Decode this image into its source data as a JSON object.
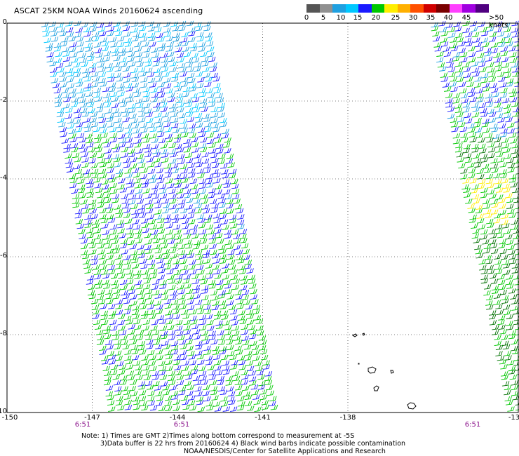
{
  "title": "ASCAT 25KM NOAA Winds 20160624 ascending",
  "legend": {
    "labels": [
      "0",
      "5",
      "10",
      "15",
      "20",
      "25",
      "30",
      "35",
      "40",
      "45",
      ">50 knots"
    ],
    "colors": [
      "#555555",
      "#909090",
      "#1fa0e0",
      "#00c8ff",
      "#1a1aff",
      "#00c800",
      "#ffee00",
      "#ffb000",
      "#ff5000",
      "#d00000",
      "#7a0000",
      "#ff40ff",
      "#a000e0",
      "#500080"
    ]
  },
  "axes": {
    "lat_labels": [
      "0",
      "-2",
      "-4",
      "-6",
      "-8",
      "-10"
    ],
    "lon_labels": [
      "-150",
      "-147",
      "-144",
      "-141",
      "-138",
      "-13"
    ],
    "time_labels": [
      "6:51",
      "6:51",
      "6:51"
    ]
  },
  "notes": {
    "line1": "Note: 1) Times are GMT 2)Times along bottom correspond to measurement at -5S",
    "line2": "3)Data buffer is 22 hrs from 20160624 4) Black wind barbs indicate possible contamination",
    "line3": "NOAA/NESDIS/Center for Satellite Applications and Research"
  }
}
